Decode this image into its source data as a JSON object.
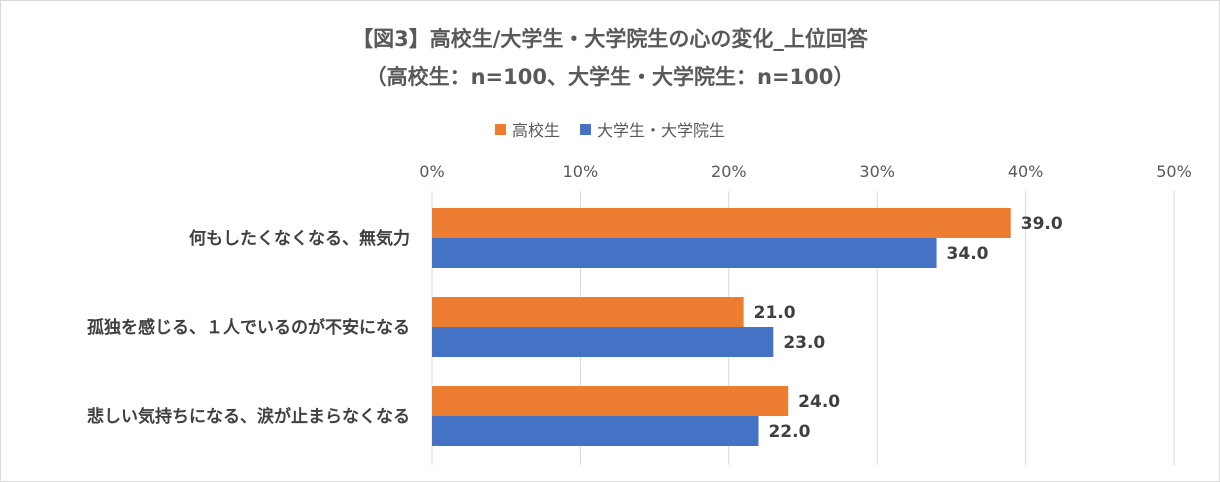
{
  "chart_data": {
    "type": "bar",
    "orientation": "horizontal",
    "title": "【図3】高校生/大学生・大学院生の心の変化_上位回答",
    "subtitle": "（高校生：n=100、大学生・大学院生：n=100）",
    "categories": [
      "何もしたくなくなる、無気力",
      "孤独を感じる、１人でいるのが不安になる",
      "悲しい気持ちになる、涙が止まらなくなる"
    ],
    "series": [
      {
        "name": "高校生",
        "color": "#ED7D31",
        "values": [
          39.0,
          21.0,
          24.0
        ],
        "labels": [
          "39.0",
          "21.0",
          "24.0"
        ]
      },
      {
        "name": "大学生・大学院生",
        "color": "#4472C4",
        "values": [
          34.0,
          23.0,
          22.0
        ],
        "labels": [
          "34.0",
          "23.0",
          "22.0"
        ]
      }
    ],
    "xlim": [
      0,
      50
    ],
    "ticks": [
      0,
      10,
      20,
      30,
      40,
      50
    ],
    "tick_labels": [
      "0%",
      "10%",
      "20%",
      "30%",
      "40%",
      "50%"
    ],
    "axis_position": "top",
    "grid": true,
    "legend_position": "top"
  }
}
